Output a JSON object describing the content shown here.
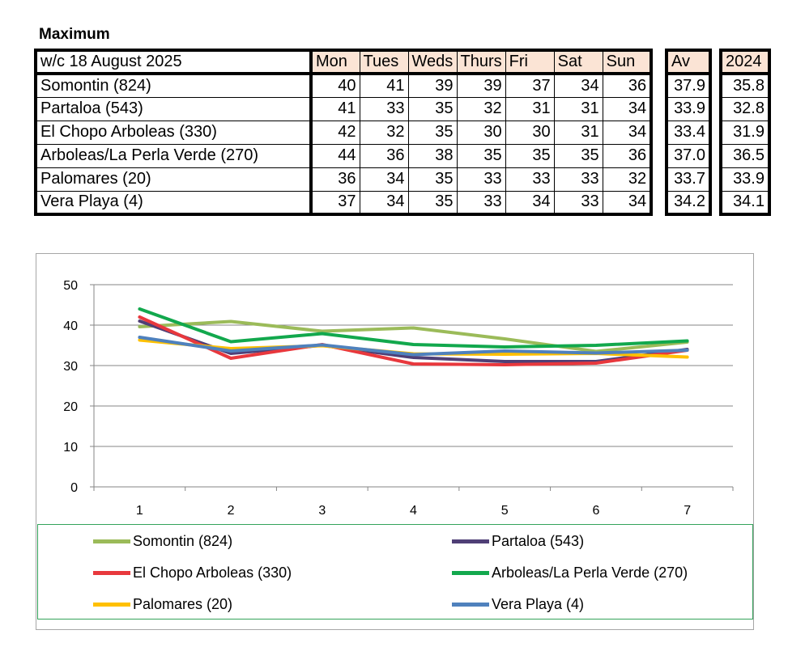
{
  "heading": "Maximum",
  "table": {
    "week_label": "w/c 18 August  2025",
    "days": [
      "Mon",
      "Tues",
      "Weds",
      "Thurs",
      "Fri",
      "Sat",
      "Sun"
    ],
    "av_label": "Av",
    "year_label": "2024",
    "rows": [
      {
        "name": "Somontin (824)",
        "vals": [
          "40",
          "41",
          "39",
          "39",
          "37",
          "34",
          "36"
        ],
        "av": "37.9",
        "y2024": "35.8"
      },
      {
        "name": "Partaloa (543)",
        "vals": [
          "41",
          "33",
          "35",
          "32",
          "31",
          "31",
          "34"
        ],
        "av": "33.9",
        "y2024": "32.8"
      },
      {
        "name": "El Chopo  Arboleas (330)",
        "vals": [
          "42",
          "32",
          "35",
          "30",
          "30",
          "31",
          "34"
        ],
        "av": "33.4",
        "y2024": "31.9"
      },
      {
        "name": "Arboleas/La Perla Verde (270)",
        "vals": [
          "44",
          "36",
          "38",
          "35",
          "35",
          "35",
          "36"
        ],
        "av": "37.0",
        "y2024": "36.5"
      },
      {
        "name": "Palomares (20)",
        "vals": [
          "36",
          "34",
          "35",
          "33",
          "33",
          "33",
          "32"
        ],
        "av": "33.7",
        "y2024": "33.9"
      },
      {
        "name": "Vera Playa (4)",
        "vals": [
          "37",
          "34",
          "35",
          "33",
          "34",
          "33",
          "34"
        ],
        "av": "34.2",
        "y2024": "34.1"
      }
    ]
  },
  "chart_data": {
    "type": "line",
    "x": [
      1,
      2,
      3,
      4,
      5,
      6,
      7
    ],
    "x_ticks": [
      "1",
      "2",
      "3",
      "4",
      "5",
      "6",
      "7"
    ],
    "y_ticks": [
      "0",
      "10",
      "20",
      "30",
      "40",
      "50"
    ],
    "ylim": [
      0,
      50
    ],
    "grid": "horizontal",
    "legend": "bottom",
    "series": [
      {
        "name": "Somontin (824)",
        "color": "#9bbb59",
        "values": [
          39.6,
          40.9,
          38.5,
          39.3,
          36.6,
          33.5,
          35.8
        ]
      },
      {
        "name": "Partaloa (543)",
        "color": "#4f3f76",
        "values": [
          41.0,
          33.0,
          35.0,
          32.0,
          31.0,
          31.0,
          34.0
        ]
      },
      {
        "name": "El Chopo  Arboleas (330)",
        "color": "#e8383d",
        "values": [
          42.0,
          31.8,
          35.2,
          30.4,
          30.2,
          30.6,
          33.8
        ]
      },
      {
        "name": "Arboleas/La Perla Verde (270)",
        "color": "#12a84d",
        "values": [
          44.0,
          35.9,
          37.9,
          35.2,
          34.6,
          35.0,
          36.1
        ]
      },
      {
        "name": "Palomares (20)",
        "color": "#ffc000",
        "values": [
          36.3,
          34.2,
          34.9,
          32.9,
          32.8,
          33.0,
          32.1
        ]
      },
      {
        "name": "Vera Playa (4)",
        "color": "#4f81bd",
        "values": [
          37.0,
          33.6,
          35.1,
          32.7,
          33.6,
          33.1,
          33.8
        ]
      }
    ]
  }
}
